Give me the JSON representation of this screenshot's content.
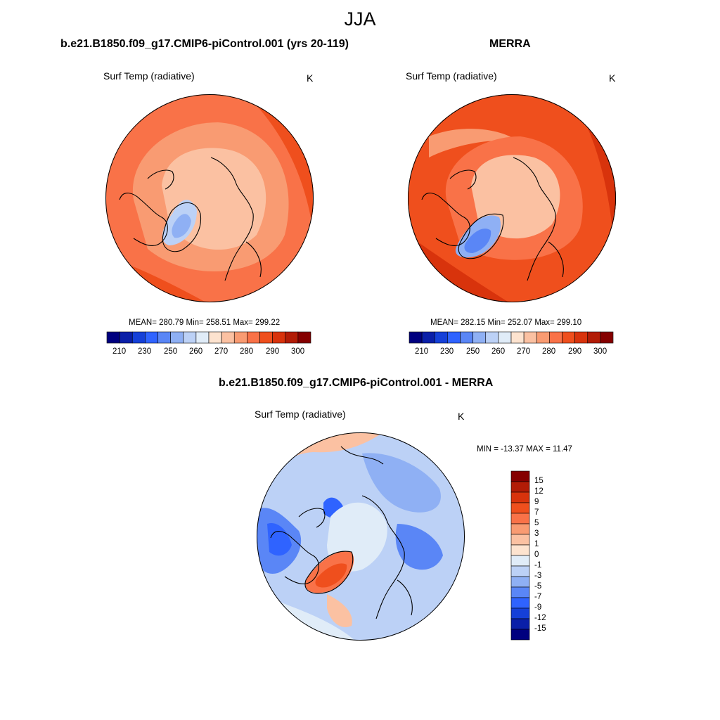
{
  "title": "JJA",
  "panels": [
    {
      "title": "b.e21.B1850.f09_g17.CMIP6-piControl.001 (yrs 20-119)",
      "variable": "Surf Temp (radiative)",
      "units": "K",
      "stats": "MEAN= 280.79  Min= 258.51  Max= 299.22"
    },
    {
      "title": "MERRA",
      "variable": "Surf Temp (radiative)",
      "units": "K",
      "stats": "MEAN= 282.15  Min= 252.07  Max= 299.10"
    },
    {
      "title": "b.e21.B1850.f09_g17.CMIP6-piControl.001 - MERRA",
      "variable": "Surf Temp (radiative)",
      "units": "K",
      "stats": "MIN = -13.37 MAX =  11.47"
    }
  ],
  "colorbar_abs": {
    "tick_labels": [
      "210",
      "230",
      "250",
      "260",
      "270",
      "280",
      "290",
      "300"
    ],
    "colors": [
      "#00007f",
      "#0a1fa8",
      "#1540d8",
      "#2f63ff",
      "#5a86f6",
      "#8fb0f4",
      "#bcd1f6",
      "#e0ecf8",
      "#fde3cf",
      "#fbc1a2",
      "#f99b72",
      "#f97248",
      "#ef4f1d",
      "#d8330c",
      "#b21c06",
      "#850000"
    ]
  },
  "colorbar_diff": {
    "tick_labels": [
      "15",
      "12",
      "9",
      "7",
      "5",
      "3",
      "1",
      "0",
      "-1",
      "-3",
      "-5",
      "-7",
      "-9",
      "-12",
      "-15"
    ],
    "colors": [
      "#850000",
      "#b21c06",
      "#d8330c",
      "#ef4f1d",
      "#f97248",
      "#f99b72",
      "#fbc1a2",
      "#fde3cf",
      "#e0ecf8",
      "#bcd1f6",
      "#8fb0f4",
      "#5a86f6",
      "#2f63ff",
      "#1540d8",
      "#0a1fa8",
      "#00007f"
    ]
  }
}
